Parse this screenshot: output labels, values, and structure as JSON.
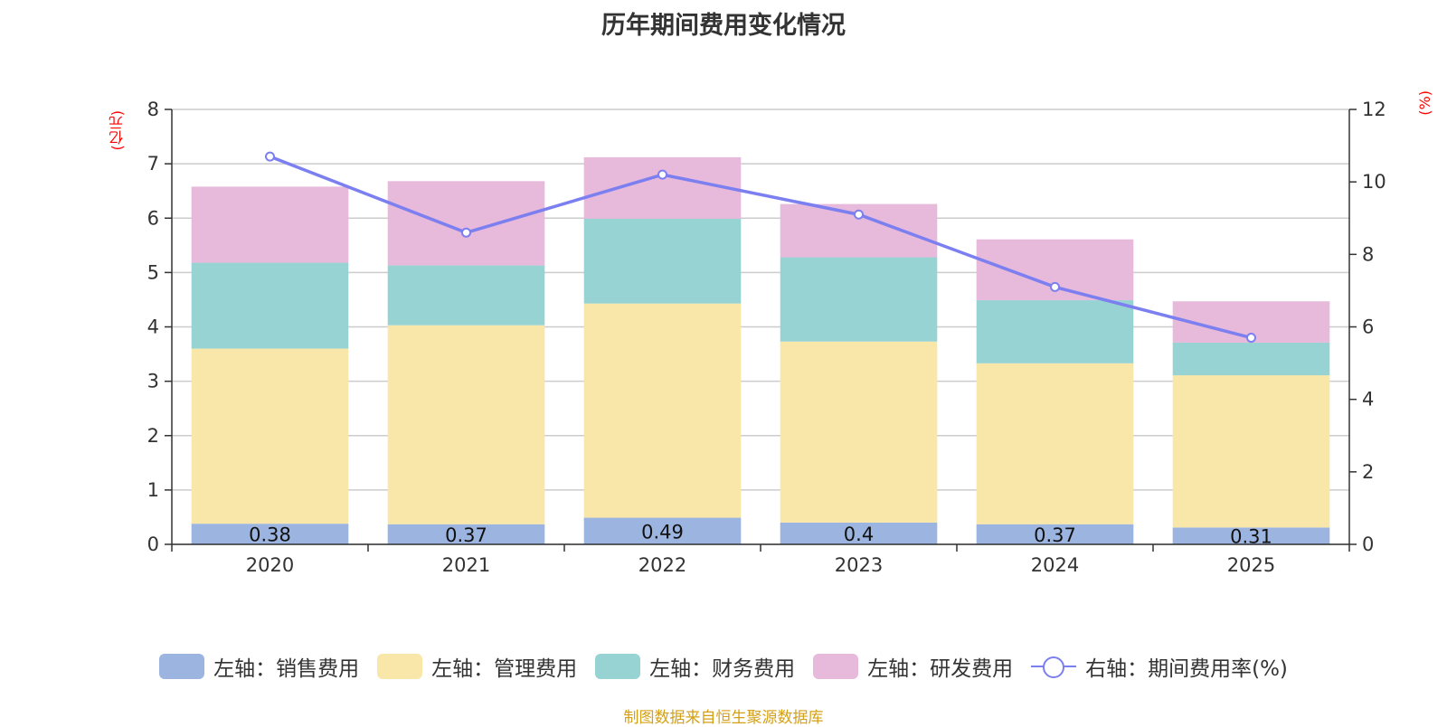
{
  "chart_data": {
    "type": "bar",
    "stacked": true,
    "title": "历年期间费用变化情况",
    "left_axis_unit": "(亿元)",
    "right_axis_unit": "(%)",
    "categories": [
      "2020",
      "2021",
      "2022",
      "2023",
      "2024",
      "2025"
    ],
    "y_left": {
      "min": 0,
      "max": 8,
      "ticks": [
        0,
        1,
        2,
        3,
        4,
        5,
        6,
        7,
        8
      ]
    },
    "y_right": {
      "min": 0,
      "max": 12,
      "ticks": [
        0,
        2,
        4,
        6,
        8,
        10,
        12
      ]
    },
    "series": [
      {
        "name": "左轴：销售费用",
        "axis": "left",
        "kind": "bar",
        "color": "#9bb5e0",
        "values": [
          0.38,
          0.37,
          0.49,
          0.4,
          0.37,
          0.31
        ],
        "labels": [
          "0.38",
          "0.37",
          "0.49",
          "0.4",
          "0.37",
          "0.31"
        ]
      },
      {
        "name": "左轴：管理费用",
        "axis": "left",
        "kind": "bar",
        "color": "#f8e7a8",
        "values": [
          3.22,
          3.66,
          3.94,
          3.33,
          2.96,
          2.8
        ]
      },
      {
        "name": "左轴：财务费用",
        "axis": "left",
        "kind": "bar",
        "color": "#98d3d4",
        "values": [
          1.58,
          1.1,
          1.56,
          1.55,
          1.16,
          0.6
        ]
      },
      {
        "name": "左轴：研发费用",
        "axis": "left",
        "kind": "bar",
        "color": "#e7b9da",
        "values": [
          1.4,
          1.55,
          1.13,
          0.98,
          1.12,
          0.76
        ]
      },
      {
        "name": "右轴：期间费用率(%)",
        "axis": "right",
        "kind": "line",
        "color": "#7b7ff0",
        "values": [
          10.7,
          8.6,
          10.2,
          9.1,
          7.1,
          5.7
        ]
      }
    ]
  },
  "source_note": "制图数据来自恒生聚源数据库"
}
